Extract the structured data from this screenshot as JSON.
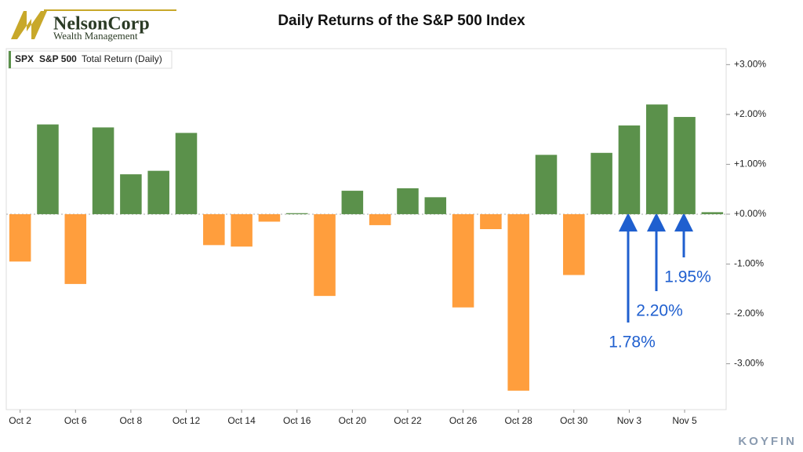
{
  "chart_data": {
    "type": "bar",
    "title": "Daily Returns of the S&P 500 Index",
    "logo": {
      "name": "NelsonCorp",
      "tagline": "Wealth Management"
    },
    "legend": {
      "ticker": "SPX",
      "name": "S&P 500",
      "metric": "Total Return (Daily)"
    },
    "source": "KOYFIN",
    "categories": [
      "Oct 2",
      null,
      "Oct 6",
      null,
      "Oct 8",
      null,
      "Oct 12",
      null,
      "Oct 14",
      null,
      "Oct 16",
      null,
      "Oct 20",
      null,
      "Oct 22",
      null,
      "Oct 26",
      null,
      "Oct 28",
      null,
      "Oct 30",
      null,
      "Nov 3",
      null,
      "Nov 5",
      null
    ],
    "values": [
      -0.95,
      1.8,
      -1.4,
      1.74,
      0.8,
      0.87,
      1.63,
      -0.62,
      -0.65,
      -0.15,
      0.02,
      -1.64,
      0.47,
      -0.22,
      0.52,
      0.34,
      -1.87,
      -0.3,
      -3.54,
      1.19,
      -1.22,
      1.23,
      1.78,
      2.2,
      1.95,
      0.04
    ],
    "positive_color": "#5b914b",
    "negative_color": "#ff9e3d",
    "ylim": [
      -3.92,
      3.32
    ],
    "yticks": [
      {
        "value": 3,
        "label": "+3.00%"
      },
      {
        "value": 2,
        "label": "+2.00%"
      },
      {
        "value": 1,
        "label": "+1.00%"
      },
      {
        "value": 0,
        "label": "+0.00%"
      },
      {
        "value": -1,
        "label": "-1.00%"
      },
      {
        "value": -2,
        "label": "-2.00%"
      },
      {
        "value": -3,
        "label": "-3.00%"
      }
    ],
    "annotations": [
      "1.78%",
      "2.20%",
      "1.95%"
    ],
    "annotation_color": "#1f5fcf"
  }
}
